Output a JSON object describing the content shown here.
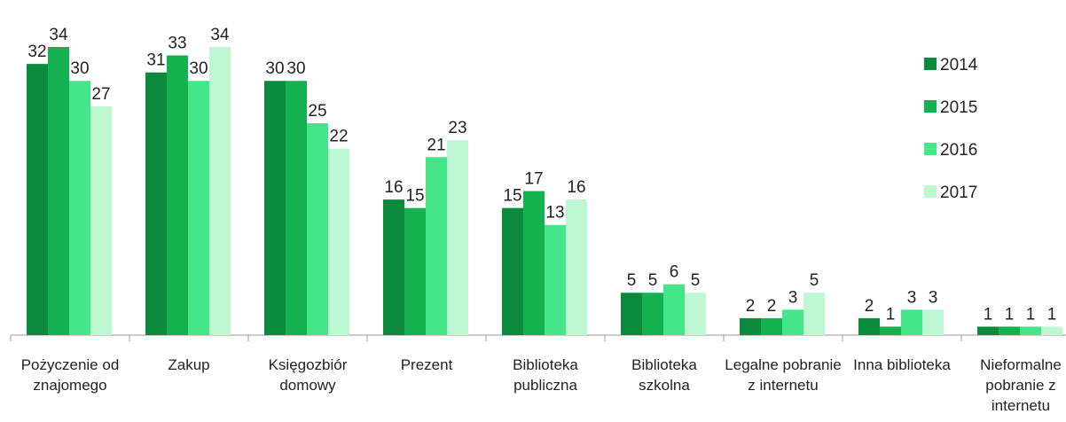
{
  "chart_data": {
    "type": "bar",
    "categories": [
      "Pożyczenie od znajomego",
      "Zakup",
      "Księgozbiór domowy",
      "Prezent",
      "Biblioteka publiczna",
      "Biblioteka szkolna",
      "Legalne pobranie z internetu",
      "Inna biblioteka",
      "Nieformalne pobranie z internetu"
    ],
    "series": [
      {
        "name": "2014",
        "color": "#0b8a3e",
        "values": [
          32,
          31,
          30,
          16,
          15,
          5,
          2,
          2,
          1
        ]
      },
      {
        "name": "2015",
        "color": "#13b150",
        "values": [
          34,
          33,
          30,
          15,
          17,
          5,
          2,
          1,
          1
        ]
      },
      {
        "name": "2016",
        "color": "#45e68a",
        "values": [
          30,
          30,
          25,
          21,
          13,
          6,
          3,
          3,
          1
        ]
      },
      {
        "name": "2017",
        "color": "#bdf8d3",
        "values": [
          27,
          34,
          22,
          23,
          16,
          5,
          5,
          3,
          1
        ]
      }
    ],
    "legend": "right"
  }
}
